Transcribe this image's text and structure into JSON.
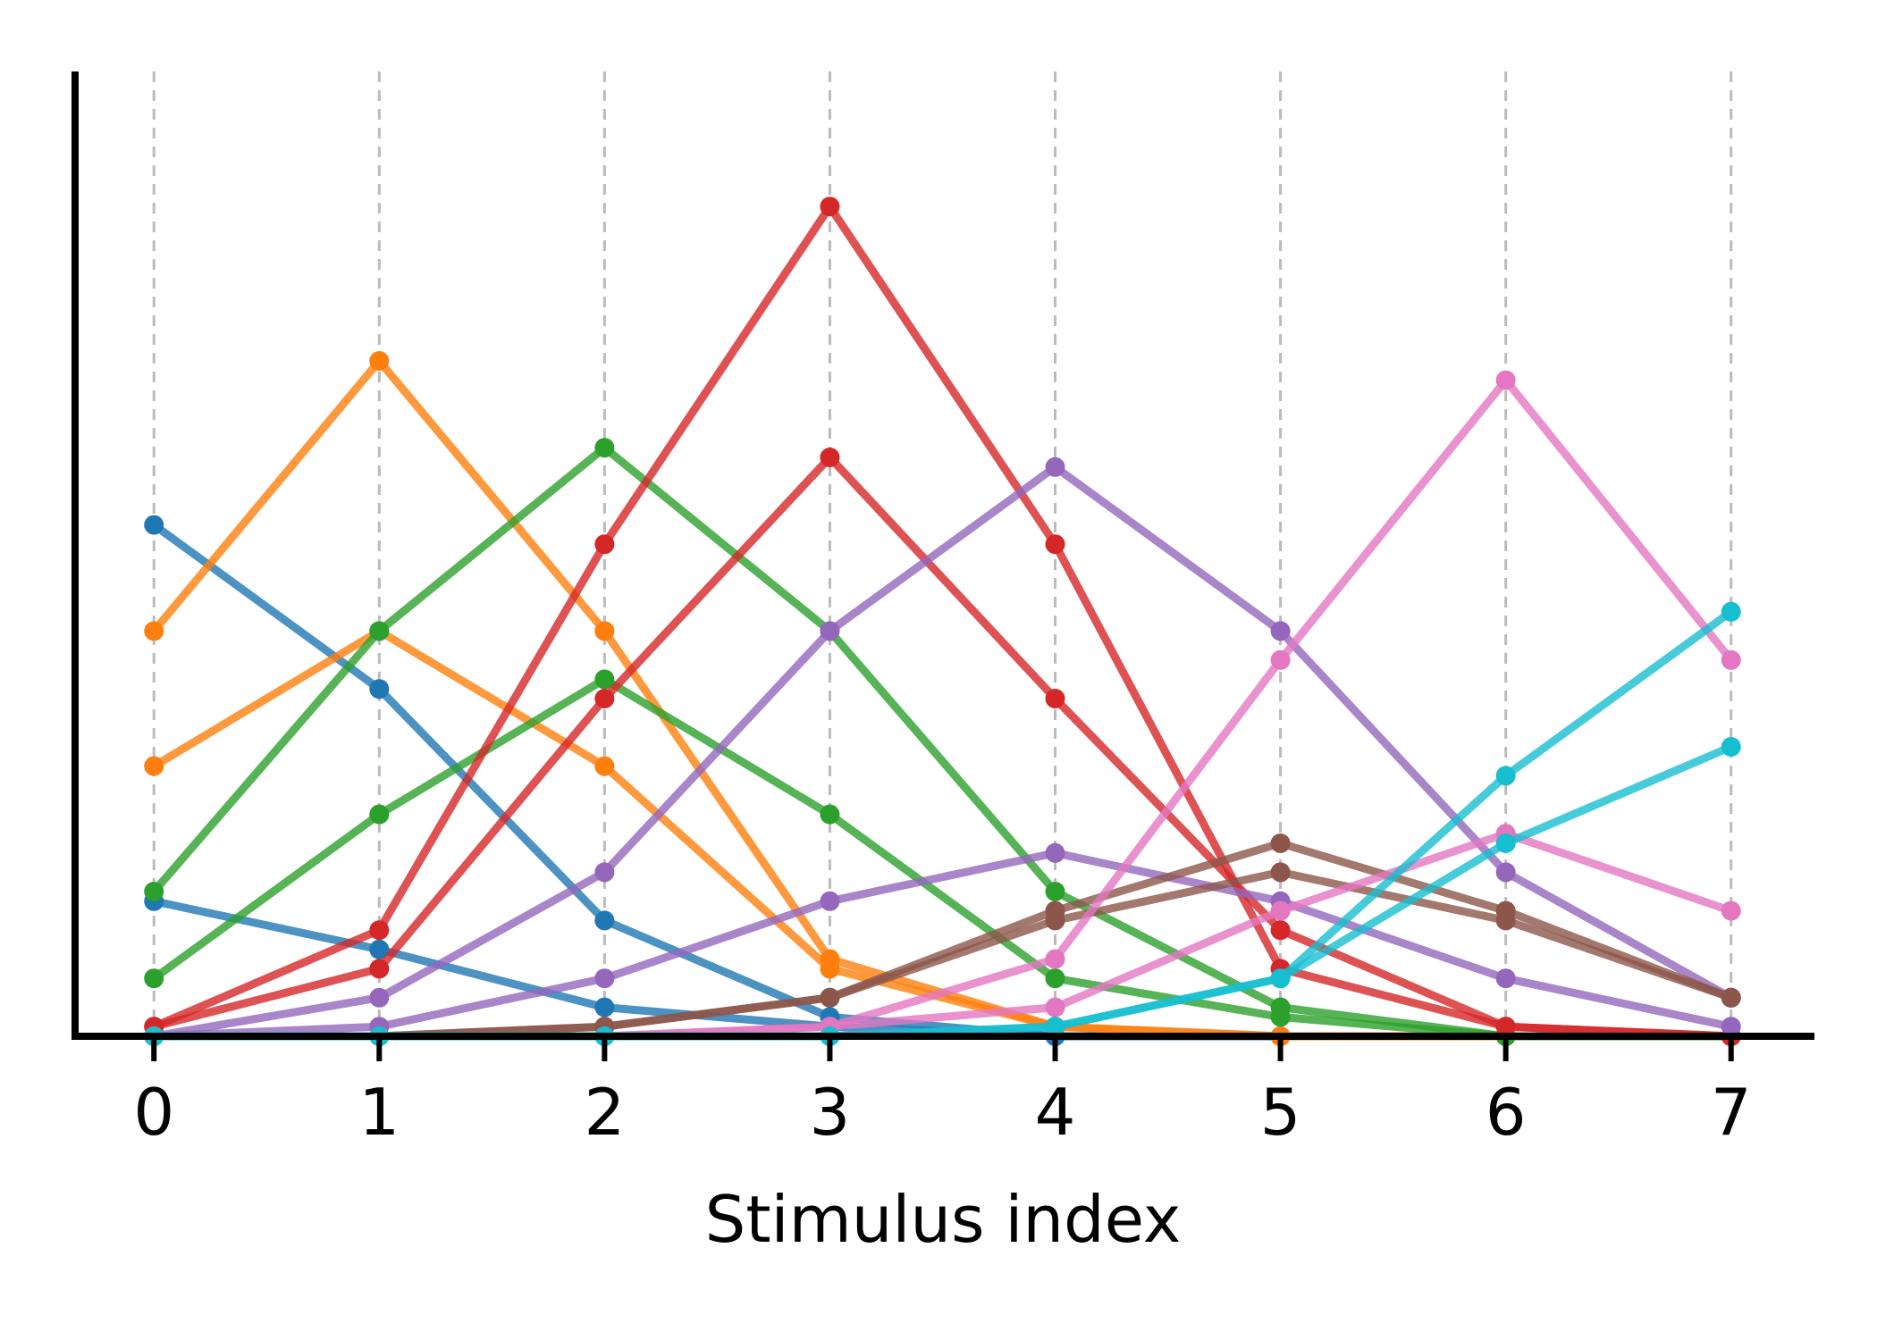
{
  "chart_data": {
    "type": "line",
    "title": "",
    "xlabel": "Stimulus index",
    "ylabel": "",
    "x": [
      0,
      1,
      2,
      3,
      4,
      5,
      6,
      7
    ],
    "xlim": [
      -0.35,
      7.37
    ],
    "ylim": [
      0,
      1.0
    ],
    "grid": "vertical-dashed",
    "legend": "none",
    "series": [
      {
        "color": "#1f77b4",
        "values": [
          0.53,
          0.36,
          0.12,
          0.02,
          0.0,
          0.0,
          0.0,
          0.0
        ]
      },
      {
        "color": "#1f77b4",
        "values": [
          0.14,
          0.09,
          0.03,
          0.01,
          0.0,
          0.0,
          0.0,
          0.0
        ]
      },
      {
        "color": "#ff7f0e",
        "values": [
          0.42,
          0.7,
          0.42,
          0.08,
          0.01,
          0.0,
          0.0,
          0.0
        ]
      },
      {
        "color": "#ff7f0e",
        "values": [
          0.28,
          0.42,
          0.28,
          0.07,
          0.01,
          0.0,
          0.0,
          0.0
        ]
      },
      {
        "color": "#2ca02c",
        "values": [
          0.15,
          0.42,
          0.61,
          0.42,
          0.15,
          0.03,
          0.0,
          0.0
        ]
      },
      {
        "color": "#2ca02c",
        "values": [
          0.06,
          0.23,
          0.37,
          0.23,
          0.06,
          0.02,
          0.0,
          0.0
        ]
      },
      {
        "color": "#d62728",
        "values": [
          0.01,
          0.11,
          0.51,
          0.86,
          0.51,
          0.07,
          0.01,
          0.0
        ]
      },
      {
        "color": "#d62728",
        "values": [
          0.01,
          0.07,
          0.35,
          0.6,
          0.35,
          0.11,
          0.01,
          0.0
        ]
      },
      {
        "color": "#9467bd",
        "values": [
          0.0,
          0.04,
          0.17,
          0.42,
          0.59,
          0.42,
          0.17,
          0.04
        ]
      },
      {
        "color": "#9467bd",
        "values": [
          0.0,
          0.01,
          0.06,
          0.14,
          0.19,
          0.14,
          0.06,
          0.01
        ]
      },
      {
        "color": "#8c564b",
        "values": [
          0.0,
          0.0,
          0.01,
          0.04,
          0.13,
          0.2,
          0.13,
          0.04
        ]
      },
      {
        "color": "#8c564b",
        "values": [
          0.0,
          0.0,
          0.01,
          0.04,
          0.12,
          0.17,
          0.12,
          0.04
        ]
      },
      {
        "color": "#e377c2",
        "values": [
          0.0,
          0.0,
          0.0,
          0.01,
          0.08,
          0.39,
          0.68,
          0.39
        ]
      },
      {
        "color": "#e377c2",
        "values": [
          0.0,
          0.0,
          0.0,
          0.01,
          0.03,
          0.13,
          0.21,
          0.13
        ]
      },
      {
        "color": "#17becf",
        "values": [
          0.0,
          0.0,
          0.0,
          0.0,
          0.01,
          0.06,
          0.27,
          0.44
        ]
      },
      {
        "color": "#17becf",
        "values": [
          0.0,
          0.0,
          0.0,
          0.0,
          0.01,
          0.06,
          0.2,
          0.3
        ]
      }
    ]
  }
}
